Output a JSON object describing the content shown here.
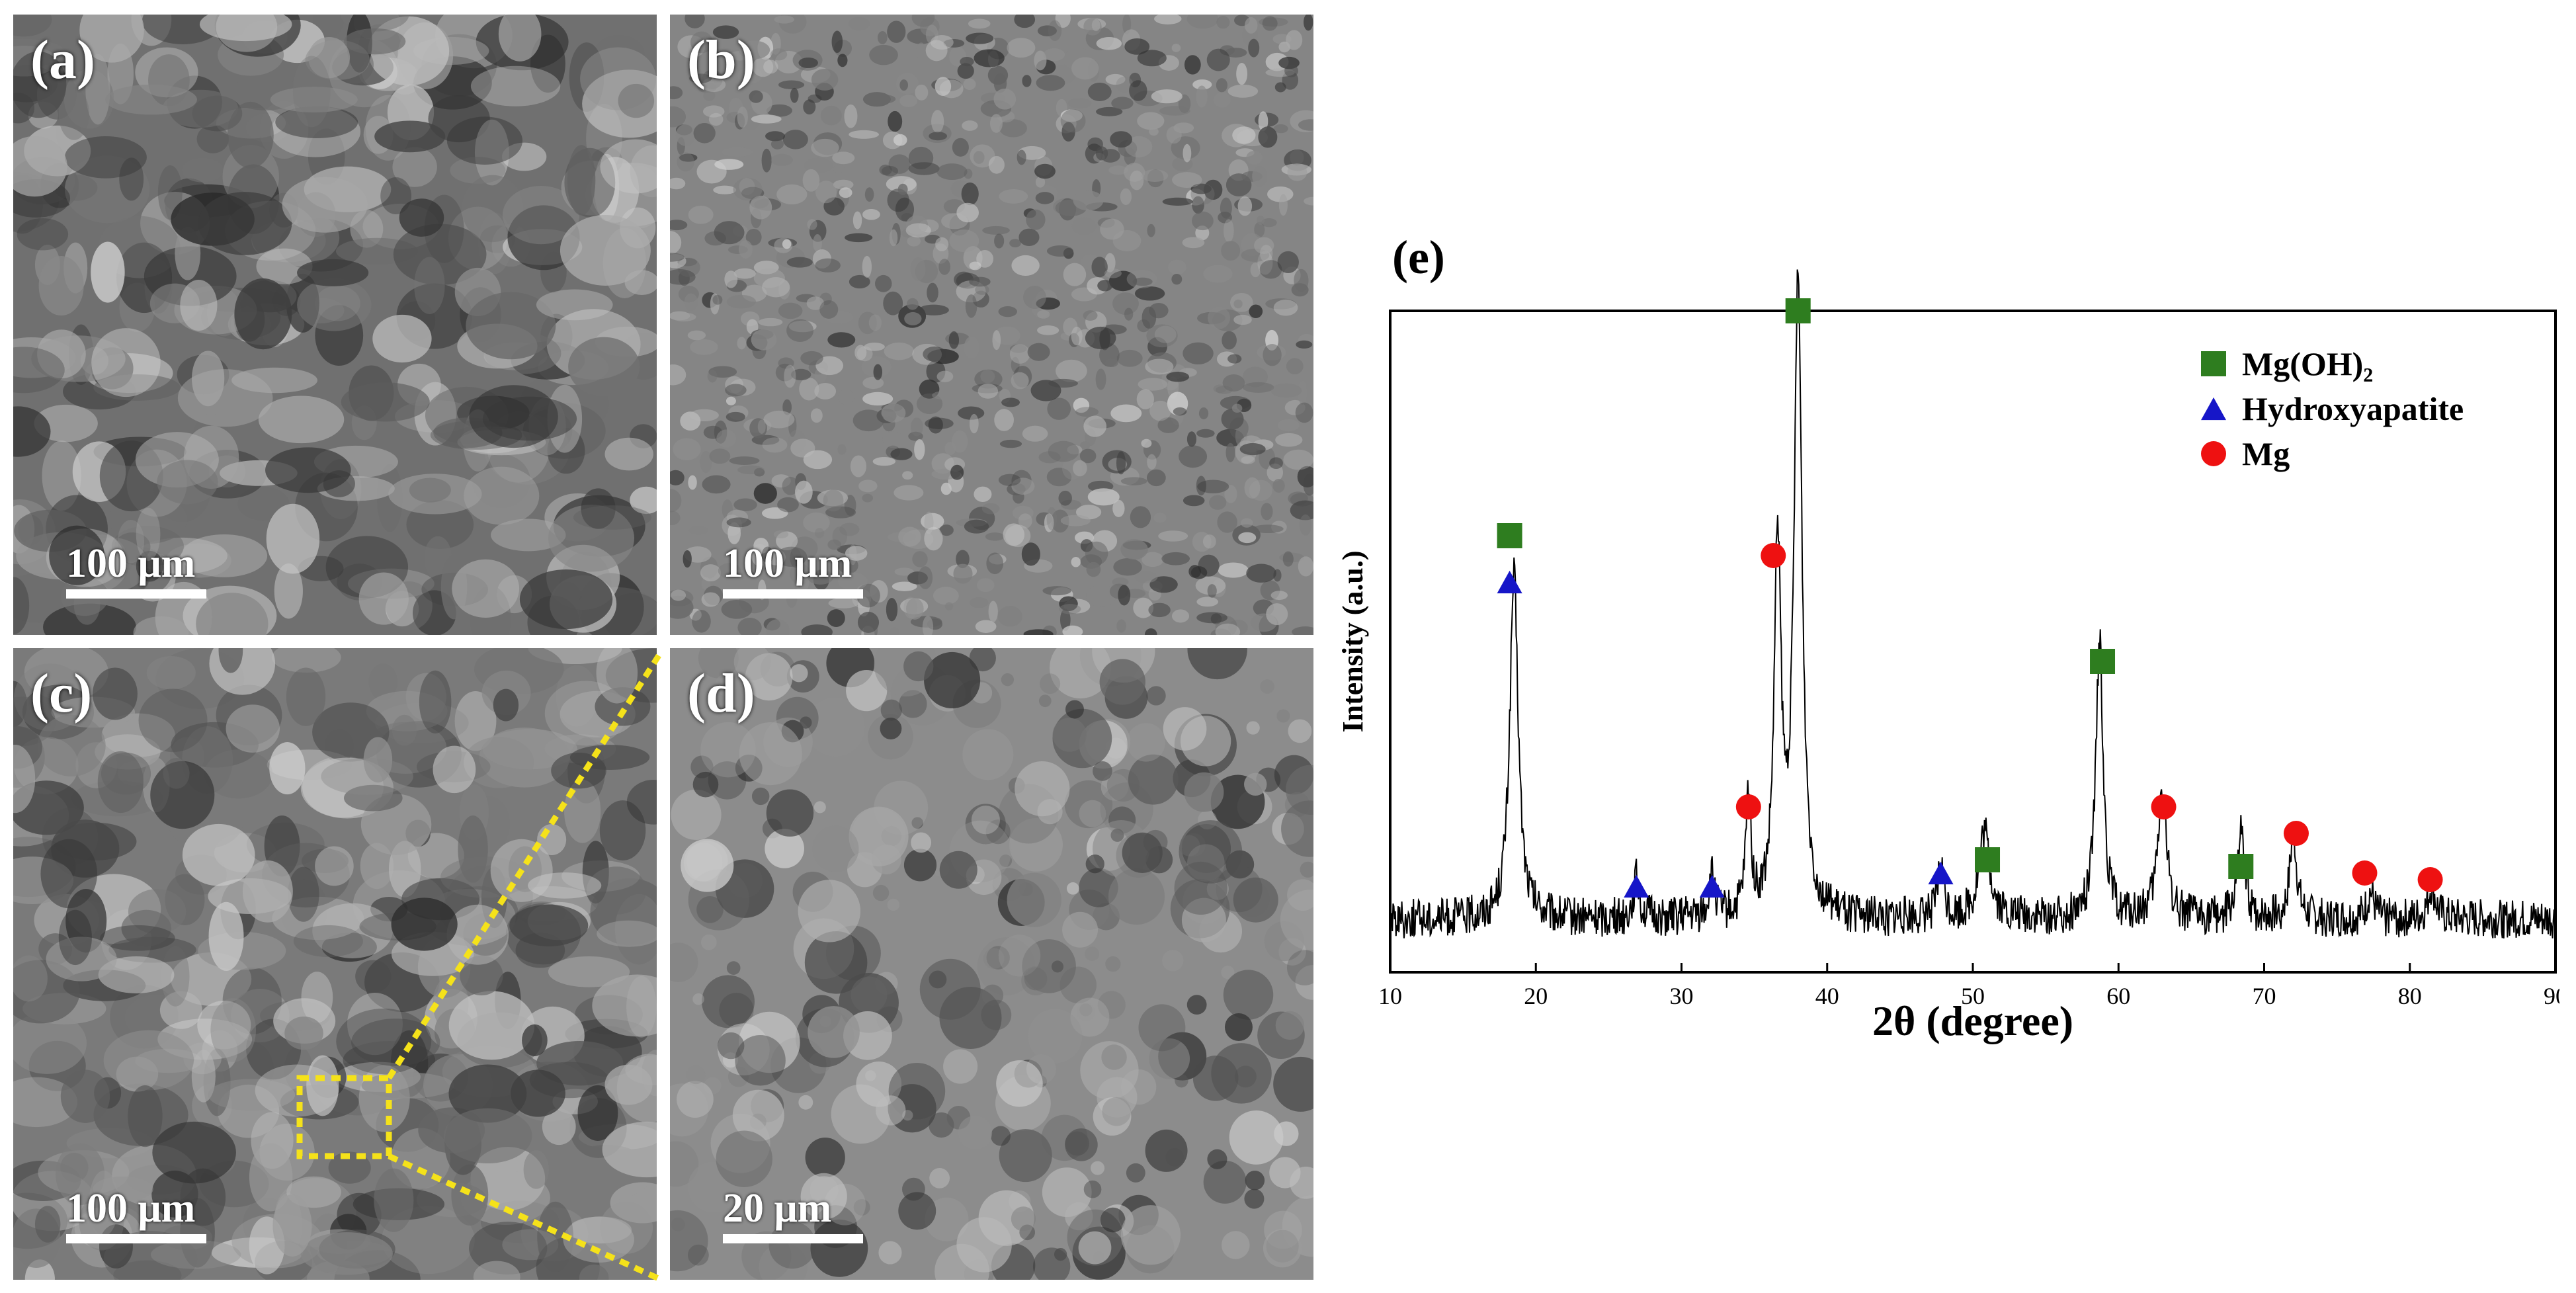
{
  "panels": [
    {
      "id": "a",
      "letter": "(a)",
      "scale": "100 μm",
      "tone": "#707070",
      "scale_frac": 0.22
    },
    {
      "id": "b",
      "letter": "(b)",
      "scale": "100 μm",
      "tone": "#858585",
      "scale_frac": 0.22
    },
    {
      "id": "c",
      "letter": "(c)",
      "scale": "100 μm",
      "tone": "#7a7a7a",
      "scale_frac": 0.22
    },
    {
      "id": "d",
      "letter": "(d)",
      "scale": "20 μm",
      "tone": "#8c8c8c",
      "scale_frac": 0.24
    }
  ],
  "zoom_color": "#f5e21a",
  "chart_data": {
    "type": "line",
    "panel_label": "(e)",
    "xlabel": "2θ (degree)",
    "ylabel": "Intensity (a.u.)",
    "xlim": [
      10,
      90
    ],
    "xticks": [
      10,
      20,
      30,
      40,
      50,
      60,
      70,
      80,
      90
    ],
    "ylim": [
      0,
      100
    ],
    "baseline": 8,
    "noise": 3,
    "peaks": [
      {
        "x": 18.5,
        "h": 52,
        "w": 0.35
      },
      {
        "x": 26.9,
        "h": 6,
        "w": 0.25
      },
      {
        "x": 32.1,
        "h": 6,
        "w": 0.25
      },
      {
        "x": 34.6,
        "h": 18,
        "w": 0.22
      },
      {
        "x": 36.6,
        "h": 56,
        "w": 0.28
      },
      {
        "x": 38.0,
        "h": 95,
        "w": 0.33
      },
      {
        "x": 47.8,
        "h": 8,
        "w": 0.25
      },
      {
        "x": 50.8,
        "h": 13,
        "w": 0.45
      },
      {
        "x": 58.7,
        "h": 42,
        "w": 0.3
      },
      {
        "x": 63.0,
        "h": 20,
        "w": 0.35
      },
      {
        "x": 68.4,
        "h": 13,
        "w": 0.28
      },
      {
        "x": 72.0,
        "h": 13,
        "w": 0.28
      },
      {
        "x": 77.3,
        "h": 4,
        "w": 0.3
      },
      {
        "x": 81.5,
        "h": 5,
        "w": 0.3
      }
    ],
    "series_markers": [
      {
        "name": "Mg(OH)₂",
        "shape": "square",
        "color": "#2e7d1f",
        "points": [
          [
            18.2,
            66
          ],
          [
            38.0,
            100
          ],
          [
            51.0,
            17
          ],
          [
            58.9,
            47
          ],
          [
            68.4,
            16
          ]
        ]
      },
      {
        "name": "Hydroxyapatite",
        "shape": "triangle",
        "color": "#1616c8",
        "points": [
          [
            18.2,
            59
          ],
          [
            26.9,
            13
          ],
          [
            32.1,
            13
          ],
          [
            47.8,
            15
          ]
        ]
      },
      {
        "name": "Mg",
        "shape": "circle",
        "color": "#ee1111",
        "points": [
          [
            34.6,
            25
          ],
          [
            36.3,
            63
          ],
          [
            63.1,
            25
          ],
          [
            72.2,
            21
          ],
          [
            76.9,
            15
          ],
          [
            81.4,
            14
          ]
        ]
      }
    ],
    "legend_position": "top-right"
  }
}
